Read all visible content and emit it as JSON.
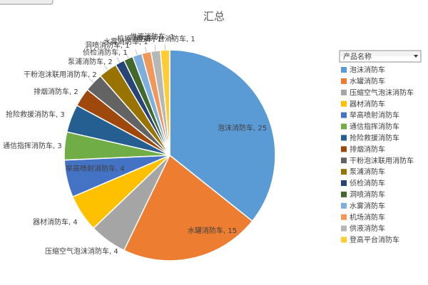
{
  "chart_data": {
    "type": "pie",
    "title": "汇总",
    "legend_position": "right",
    "legend_header": "产品名称",
    "labels_show": "category, value",
    "start_angle_deg": 0,
    "direction": "clockwise",
    "slices": [
      {
        "label": "泡沫消防车",
        "value": 25,
        "color": "#5B9BD5"
      },
      {
        "label": "水罐消防车",
        "value": 15,
        "color": "#ED7D31"
      },
      {
        "label": "压缩空气泡沫消防车",
        "value": 4,
        "color": "#A5A5A5"
      },
      {
        "label": "器材消防车",
        "value": 4,
        "color": "#FFC000"
      },
      {
        "label": "举高喷射消防车",
        "value": 4,
        "color": "#4472C4"
      },
      {
        "label": "通信指挥消防车",
        "value": 3,
        "color": "#70AD47"
      },
      {
        "label": "抢险救援消防车",
        "value": 3,
        "color": "#255E91"
      },
      {
        "label": "排烟消防车",
        "value": 2,
        "color": "#9E480E"
      },
      {
        "label": "干粉泡沫联用消防车",
        "value": 2,
        "color": "#636363"
      },
      {
        "label": "泵浦消防车",
        "value": 2,
        "color": "#997300"
      },
      {
        "label": "侦检消防车",
        "value": 1,
        "color": "#264478"
      },
      {
        "label": "洞喷消防车",
        "value": 1,
        "color": "#43682B"
      },
      {
        "label": "水雾消防车",
        "value": 1,
        "color": "#7CAFDD"
      },
      {
        "label": "机场消防车",
        "value": 1,
        "color": "#F1975A"
      },
      {
        "label": "供液消防车",
        "value": 1,
        "color": "#B7B7B7"
      },
      {
        "label": "登高平台消防车",
        "value": 1,
        "color": "#FFCD33"
      }
    ]
  },
  "top_field_button": {
    "label": ""
  },
  "legend_dropdown_icon": "chevron-down-icon"
}
